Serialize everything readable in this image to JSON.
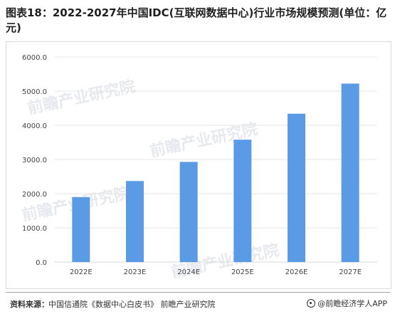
{
  "title": "图表18：2022-2027年中国IDC(互联网数据中心)行业市场规模预测(单位：亿元)",
  "source": {
    "label": "资料来源：",
    "text": "中国信通院《数据中心白皮书》 前瞻产业研究院",
    "brand": "@前瞻经济学人APP",
    "brand_icon": "circle-logo-icon"
  },
  "watermark_text": "前瞻产业研究院",
  "colors": {
    "bar": "#5B9BE6",
    "axis": "#d9d9d9",
    "grid": "#e6e6e6",
    "tick_text": "#444444"
  },
  "chart_data": {
    "type": "bar",
    "categories": [
      "2022E",
      "2023E",
      "2024E",
      "2025E",
      "2026E",
      "2027E"
    ],
    "values": [
      1900,
      2370,
      2930,
      3580,
      4340,
      5220
    ],
    "title": "",
    "xlabel": "",
    "ylabel": "",
    "ylim": [
      0,
      6000
    ],
    "yticks": [
      "0.0",
      "1000.0",
      "2000.0",
      "3000.0",
      "4000.0",
      "5000.0",
      "6000.0"
    ],
    "grid": true,
    "legend": "none"
  }
}
